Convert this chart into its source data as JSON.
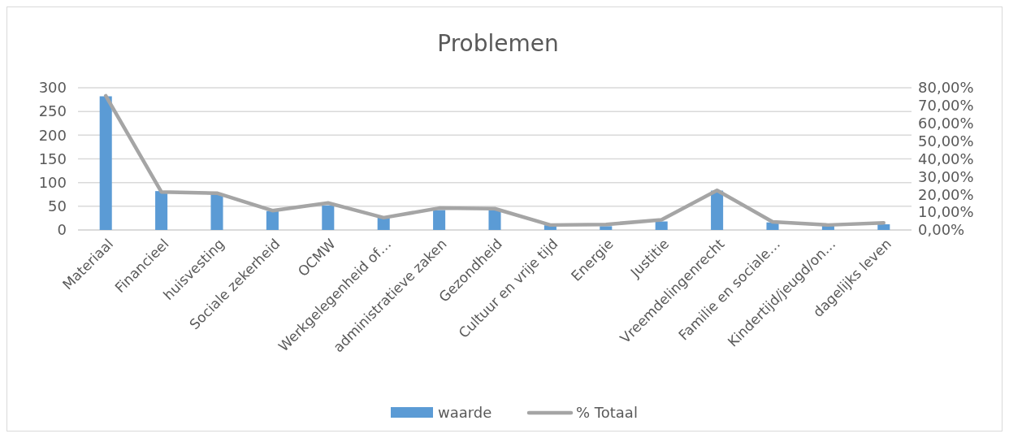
{
  "chart_data": {
    "type": "bar",
    "title": "Problemen",
    "categories": [
      "Materiaal",
      "Financieel",
      "huisvesting",
      "Sociale zekerheid",
      "OCMW",
      "Werkgelegenheid of…",
      "administratieve zaken",
      "Gezondheid",
      "Cultuur en vrije tijd",
      "Energie",
      "Justitie",
      "Vreemdelingenrecht",
      "Familie en sociale…",
      "Kindertijd/jeugd/on…",
      "dagelijks leven"
    ],
    "series": [
      {
        "name": "waarde",
        "color": "#5b9bd5",
        "values": [
          282,
          82,
          76,
          40,
          52,
          26,
          42,
          42,
          10,
          8,
          18,
          83,
          16,
          9,
          12
        ]
      },
      {
        "name": "% Totaal",
        "type": "line",
        "axis": "y2",
        "color": "#a5a5a5",
        "values": [
          75.5,
          21.4,
          20.7,
          10.9,
          15.2,
          6.9,
          12.3,
          12.0,
          2.8,
          3.1,
          5.7,
          22.3,
          4.6,
          2.8,
          4.0
        ]
      }
    ],
    "ylim": [
      0,
      300
    ],
    "yticks": [
      0,
      50,
      100,
      150,
      200,
      250,
      300
    ],
    "y2lim": [
      0,
      80
    ],
    "y2ticks": [
      {
        "value": 0,
        "label": "0,00%"
      },
      {
        "value": 10,
        "label": "10,00%"
      },
      {
        "value": 20,
        "label": "20,00%"
      },
      {
        "value": 30,
        "label": "30,00%"
      },
      {
        "value": 40,
        "label": "40,00%"
      },
      {
        "value": 50,
        "label": "50,00%"
      },
      {
        "value": 60,
        "label": "60,00%"
      },
      {
        "value": 70,
        "label": "70,00%"
      },
      {
        "value": 80,
        "label": "80,00%"
      }
    ],
    "grid": "y",
    "legend": "bottom",
    "marker": "none",
    "line_style": "solid"
  }
}
